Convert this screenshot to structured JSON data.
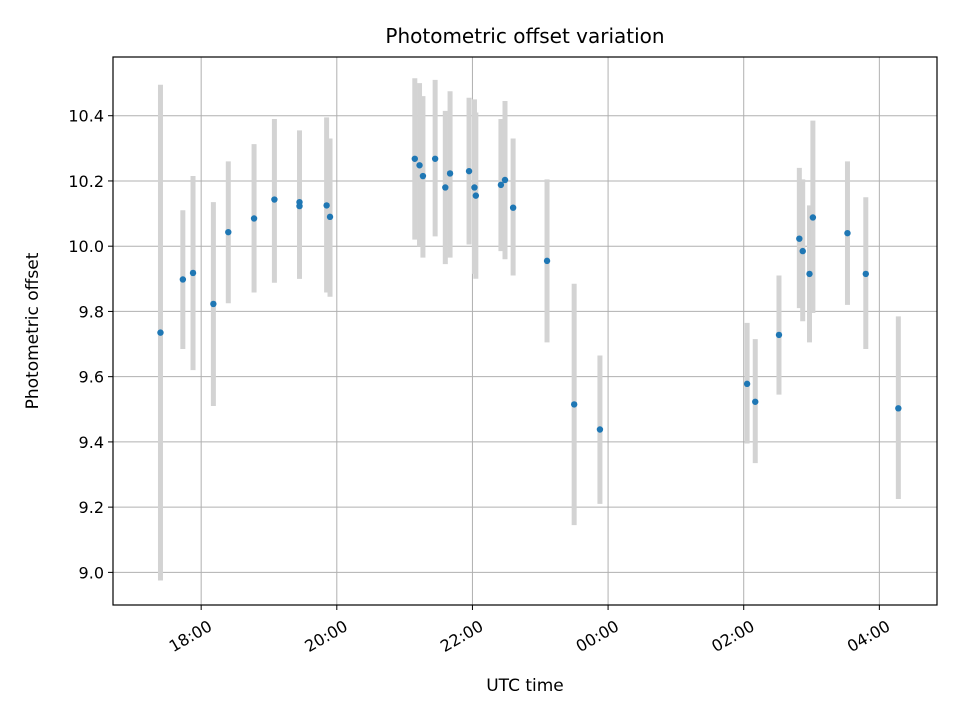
{
  "chart_data": {
    "type": "scatter",
    "title": "Photometric offset variation",
    "xlabel": "UTC time",
    "ylabel": "Photometric offset",
    "x_unit": "hours since 00:00 of first day",
    "xlim": [
      16.7,
      28.85
    ],
    "ylim": [
      8.9,
      10.58
    ],
    "x_ticks": [
      {
        "value": 18,
        "label": "18:00"
      },
      {
        "value": 20,
        "label": "20:00"
      },
      {
        "value": 22,
        "label": "22:00"
      },
      {
        "value": 24,
        "label": "00:00"
      },
      {
        "value": 26,
        "label": "02:00"
      },
      {
        "value": 28,
        "label": "04:00"
      }
    ],
    "y_ticks": [
      {
        "value": 9.0,
        "label": "9.0"
      },
      {
        "value": 9.2,
        "label": "9.2"
      },
      {
        "value": 9.4,
        "label": "9.4"
      },
      {
        "value": 9.6,
        "label": "9.6"
      },
      {
        "value": 9.8,
        "label": "9.8"
      },
      {
        "value": 10.0,
        "label": "10.0"
      },
      {
        "value": 10.2,
        "label": "10.2"
      },
      {
        "value": 10.4,
        "label": "10.4"
      }
    ],
    "grid": true,
    "colors": {
      "marker": "#1f77b4",
      "errorbar": "#d3d3d3",
      "grid": "#b0b0b0"
    },
    "points": [
      {
        "x": 17.4,
        "y": 9.735,
        "lo": 8.975,
        "hi": 10.495
      },
      {
        "x": 17.73,
        "y": 9.898,
        "lo": 9.685,
        "hi": 10.11
      },
      {
        "x": 17.88,
        "y": 9.918,
        "lo": 9.62,
        "hi": 10.215
      },
      {
        "x": 18.18,
        "y": 9.823,
        "lo": 9.51,
        "hi": 10.135
      },
      {
        "x": 18.4,
        "y": 10.043,
        "lo": 9.825,
        "hi": 10.26
      },
      {
        "x": 18.78,
        "y": 10.085,
        "lo": 9.858,
        "hi": 10.313
      },
      {
        "x": 19.08,
        "y": 10.143,
        "lo": 9.888,
        "hi": 10.39
      },
      {
        "x": 19.45,
        "y": 10.135,
        "lo": 9.9,
        "hi": 10.355
      },
      {
        "x": 19.45,
        "y": 10.123,
        "lo": 9.9,
        "hi": 10.34
      },
      {
        "x": 19.85,
        "y": 10.125,
        "lo": 9.858,
        "hi": 10.395
      },
      {
        "x": 19.9,
        "y": 10.09,
        "lo": 9.845,
        "hi": 10.33
      },
      {
        "x": 21.15,
        "y": 10.268,
        "lo": 10.02,
        "hi": 10.515
      },
      {
        "x": 21.22,
        "y": 10.248,
        "lo": 10.0,
        "hi": 10.5
      },
      {
        "x": 21.27,
        "y": 10.215,
        "lo": 9.965,
        "hi": 10.46
      },
      {
        "x": 21.45,
        "y": 10.268,
        "lo": 10.03,
        "hi": 10.51
      },
      {
        "x": 21.6,
        "y": 10.18,
        "lo": 9.945,
        "hi": 10.415
      },
      {
        "x": 21.67,
        "y": 10.223,
        "lo": 9.965,
        "hi": 10.475
      },
      {
        "x": 21.95,
        "y": 10.23,
        "lo": 10.005,
        "hi": 10.455
      },
      {
        "x": 22.03,
        "y": 10.18,
        "lo": 9.915,
        "hi": 10.45
      },
      {
        "x": 22.05,
        "y": 10.155,
        "lo": 9.9,
        "hi": 10.41
      },
      {
        "x": 22.42,
        "y": 10.188,
        "lo": 9.985,
        "hi": 10.39
      },
      {
        "x": 22.48,
        "y": 10.203,
        "lo": 9.96,
        "hi": 10.445
      },
      {
        "x": 22.6,
        "y": 10.118,
        "lo": 9.91,
        "hi": 10.33
      },
      {
        "x": 23.1,
        "y": 9.955,
        "lo": 9.705,
        "hi": 10.205
      },
      {
        "x": 23.5,
        "y": 9.515,
        "lo": 9.145,
        "hi": 9.885
      },
      {
        "x": 23.88,
        "y": 9.438,
        "lo": 9.21,
        "hi": 9.665
      },
      {
        "x": 26.05,
        "y": 9.578,
        "lo": 9.395,
        "hi": 9.765
      },
      {
        "x": 26.17,
        "y": 9.523,
        "lo": 9.335,
        "hi": 9.715
      },
      {
        "x": 26.52,
        "y": 9.728,
        "lo": 9.545,
        "hi": 9.91
      },
      {
        "x": 26.82,
        "y": 10.023,
        "lo": 9.81,
        "hi": 10.24
      },
      {
        "x": 26.87,
        "y": 9.985,
        "lo": 9.77,
        "hi": 10.205
      },
      {
        "x": 26.97,
        "y": 9.915,
        "lo": 9.705,
        "hi": 10.125
      },
      {
        "x": 27.02,
        "y": 10.088,
        "lo": 9.795,
        "hi": 10.385
      },
      {
        "x": 27.53,
        "y": 10.04,
        "lo": 9.82,
        "hi": 10.26
      },
      {
        "x": 27.8,
        "y": 9.915,
        "lo": 9.685,
        "hi": 10.15
      },
      {
        "x": 28.28,
        "y": 9.503,
        "lo": 9.225,
        "hi": 9.785
      }
    ]
  }
}
